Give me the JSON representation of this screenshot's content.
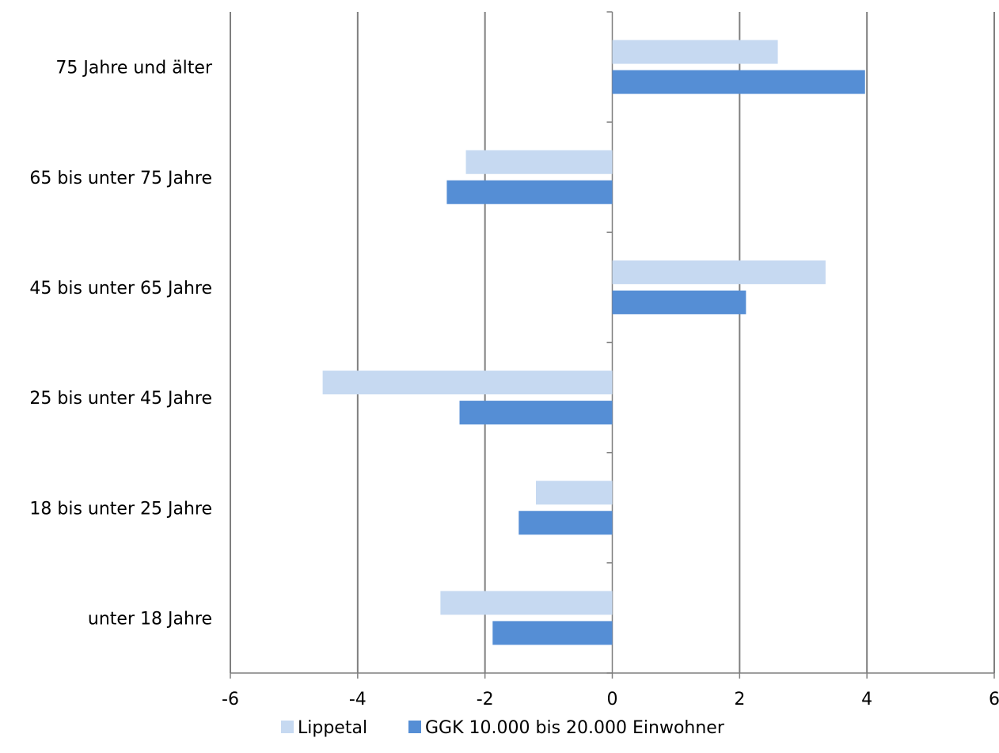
{
  "chart_data": {
    "type": "bar",
    "orientation": "horizontal",
    "categories": [
      "75 Jahre und älter",
      "65 bis unter 75 Jahre",
      "45 bis unter 65 Jahre",
      "25 bis unter 45 Jahre",
      "18 bis unter 25 Jahre",
      "unter 18 Jahre"
    ],
    "series": [
      {
        "name": "Lippetal",
        "color": "#c6d9f1",
        "values": [
          2.6,
          -2.3,
          3.35,
          -4.55,
          -1.2,
          -2.7
        ]
      },
      {
        "name": "GGK 10.000 bis 20.000 Einwohner",
        "color": "#558ed5",
        "values": [
          3.97,
          -2.6,
          2.1,
          -2.4,
          -1.47,
          -1.88
        ]
      }
    ],
    "xlim": [
      -6,
      6
    ],
    "xticks": [
      "-6",
      "-4",
      "-2",
      "0",
      "2",
      "4",
      "6"
    ],
    "grid": true,
    "legend_position": "bottom"
  }
}
